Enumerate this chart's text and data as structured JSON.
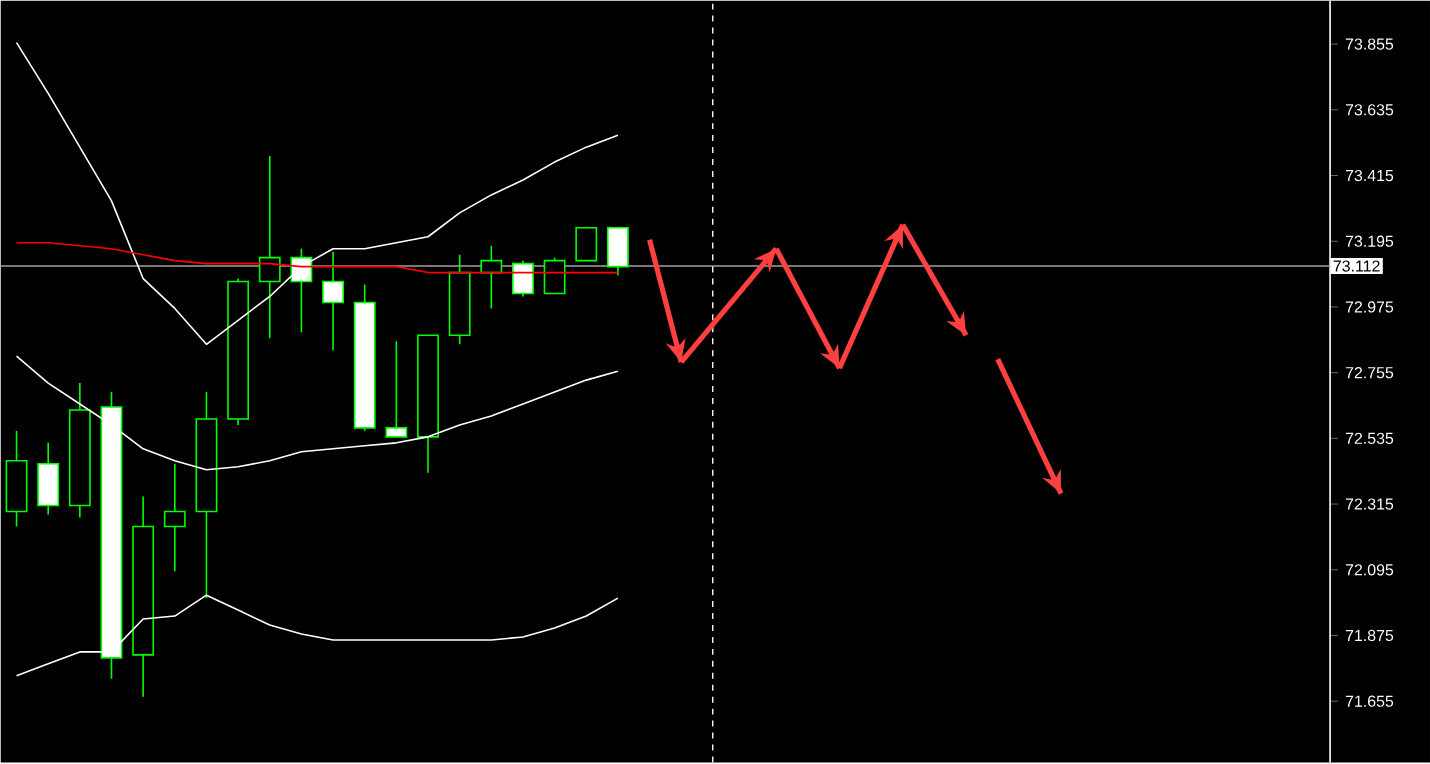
{
  "chart_data": {
    "type": "candlestick",
    "color": "#00ff00",
    "marker": "none",
    "categories": [
      null,
      null,
      null,
      null,
      null,
      null,
      null,
      null,
      null,
      null,
      null,
      null,
      null,
      null,
      null,
      null,
      null,
      null,
      null,
      null,
      null,
      null,
      null,
      null,
      null,
      null,
      null,
      null,
      null,
      null,
      null,
      null,
      null,
      null,
      null,
      null,
      null,
      null,
      null,
      null,
      null,
      null
    ],
    "ohlc": [
      [
        72.29,
        72.56,
        72.24,
        72.46
      ],
      [
        72.45,
        72.52,
        72.28,
        72.31
      ],
      [
        72.31,
        72.72,
        72.27,
        72.63
      ],
      [
        72.64,
        72.69,
        71.73,
        71.8
      ],
      [
        71.81,
        72.34,
        71.67,
        72.24
      ],
      [
        72.24,
        72.45,
        72.09,
        72.29
      ],
      [
        72.29,
        72.69,
        72.0,
        72.6
      ],
      [
        72.6,
        73.07,
        72.58,
        73.06
      ],
      [
        73.06,
        73.48,
        72.87,
        73.14
      ],
      [
        73.14,
        73.17,
        72.89,
        73.06
      ],
      [
        73.06,
        73.16,
        72.83,
        72.99
      ],
      [
        72.99,
        73.05,
        72.56,
        72.57
      ],
      [
        72.57,
        72.86,
        72.54,
        72.54
      ],
      [
        72.54,
        72.88,
        72.42,
        72.88
      ],
      [
        72.88,
        73.15,
        72.85,
        73.09
      ],
      [
        73.09,
        73.18,
        72.97,
        73.13
      ],
      [
        73.12,
        73.13,
        73.01,
        73.02
      ],
      [
        73.02,
        73.14,
        73.02,
        73.13
      ],
      [
        73.13,
        73.24,
        73.13,
        73.24
      ],
      [
        73.24,
        73.24,
        73.08,
        73.11
      ],
      null,
      null,
      null,
      null,
      null,
      null,
      null,
      null,
      null,
      null,
      null,
      null,
      null,
      null,
      null,
      null,
      null,
      null,
      null,
      null,
      null,
      null
    ],
    "ylim": [
      71.45,
      74.0
    ],
    "yticks": [
      71.655,
      71.875,
      72.095,
      72.315,
      72.535,
      72.755,
      72.975,
      73.195,
      73.415,
      73.635,
      73.855
    ],
    "series": [
      {
        "type": "line",
        "color": "#ffffff",
        "values": [
          73.86,
          73.69,
          73.51,
          73.33,
          73.07,
          72.97,
          72.85,
          72.93,
          73.01,
          73.11,
          73.17,
          73.17,
          73.19,
          73.21,
          73.29,
          73.35,
          73.4,
          73.46,
          73.51,
          73.55,
          null,
          null,
          null,
          null,
          null,
          null,
          null,
          null,
          null,
          null,
          null,
          null,
          null,
          null,
          null,
          null,
          null,
          null,
          null,
          null,
          null,
          null
        ]
      },
      {
        "type": "line",
        "color": "#ffffff",
        "values": [
          72.81,
          72.72,
          72.65,
          72.58,
          72.5,
          72.46,
          72.43,
          72.44,
          72.46,
          72.49,
          72.5,
          72.51,
          72.52,
          72.54,
          72.58,
          72.61,
          72.65,
          72.69,
          72.73,
          72.76,
          null,
          null,
          null,
          null,
          null,
          null,
          null,
          null,
          null,
          null,
          null,
          null,
          null,
          null,
          null,
          null,
          null,
          null,
          null,
          null,
          null,
          null
        ]
      },
      {
        "type": "line",
        "color": "#ffffff",
        "values": [
          71.74,
          71.78,
          71.82,
          71.82,
          71.93,
          71.94,
          72.01,
          71.96,
          71.91,
          71.88,
          71.86,
          71.86,
          71.86,
          71.86,
          71.86,
          71.86,
          71.87,
          71.9,
          71.94,
          72.0,
          null,
          null,
          null,
          null,
          null,
          null,
          null,
          null,
          null,
          null,
          null,
          null,
          null,
          null,
          null,
          null,
          null,
          null,
          null,
          null,
          null,
          null
        ]
      },
      {
        "type": "line",
        "color": "#ff0000",
        "values": [
          73.19,
          73.19,
          73.18,
          73.17,
          73.15,
          73.13,
          73.12,
          73.12,
          73.12,
          73.11,
          73.11,
          73.11,
          73.11,
          73.09,
          73.09,
          73.09,
          73.09,
          73.09,
          73.09,
          73.09,
          null,
          null,
          null,
          null,
          null,
          null,
          null,
          null,
          null,
          null,
          null,
          null,
          null,
          null,
          null,
          null,
          null,
          null,
          null,
          null,
          null,
          null
        ]
      },
      {
        "type": "line",
        "color": "#ff4040",
        "values": [
          null,
          null,
          null,
          null,
          null,
          null,
          null,
          null,
          null,
          null,
          null,
          null,
          null,
          null,
          null,
          null,
          null,
          null,
          null,
          null,
          73.2,
          72.79,
          null,
          null,
          null,
          null,
          null,
          null,
          null,
          null,
          null,
          null,
          null,
          null,
          null,
          null,
          null,
          null,
          null,
          null,
          null,
          null
        ]
      },
      {
        "type": "line",
        "color": "#ff4040",
        "values": [
          null,
          null,
          null,
          null,
          null,
          null,
          null,
          null,
          null,
          null,
          null,
          null,
          null,
          null,
          null,
          null,
          null,
          null,
          null,
          null,
          null,
          72.79,
          null,
          null,
          73.17,
          null,
          null,
          null,
          null,
          null,
          null,
          null,
          null,
          null,
          null,
          null,
          null,
          null,
          null,
          null,
          null,
          null
        ]
      },
      {
        "type": "line",
        "color": "#ff4040",
        "values": [
          null,
          null,
          null,
          null,
          null,
          null,
          null,
          null,
          null,
          null,
          null,
          null,
          null,
          null,
          null,
          null,
          null,
          null,
          null,
          null,
          null,
          null,
          null,
          null,
          73.17,
          null,
          72.77,
          null,
          null,
          null,
          null,
          null,
          null,
          null,
          null,
          null,
          null,
          null,
          null,
          null,
          null,
          null
        ]
      },
      {
        "type": "line",
        "color": "#ff4040",
        "values": [
          null,
          null,
          null,
          null,
          null,
          null,
          null,
          null,
          null,
          null,
          null,
          null,
          null,
          null,
          null,
          null,
          null,
          null,
          null,
          null,
          null,
          null,
          null,
          null,
          null,
          null,
          72.77,
          null,
          73.25,
          null,
          null,
          null,
          null,
          null,
          null,
          null,
          null,
          null,
          null,
          null,
          null,
          null
        ]
      },
      {
        "type": "line",
        "color": "#ff4040",
        "values": [
          null,
          null,
          null,
          null,
          null,
          null,
          null,
          null,
          null,
          null,
          null,
          null,
          null,
          null,
          null,
          null,
          null,
          null,
          null,
          null,
          null,
          null,
          null,
          null,
          null,
          null,
          null,
          null,
          73.25,
          null,
          72.88,
          null,
          null,
          null,
          null,
          null,
          null,
          null,
          null,
          null,
          null,
          null
        ]
      },
      {
        "type": "line",
        "color": "#ff4040",
        "values": [
          null,
          null,
          null,
          null,
          null,
          null,
          null,
          null,
          null,
          null,
          null,
          null,
          null,
          null,
          null,
          null,
          null,
          null,
          null,
          null,
          null,
          null,
          null,
          null,
          null,
          null,
          null,
          null,
          null,
          null,
          null,
          72.8,
          null,
          72.35,
          null,
          null,
          null,
          null,
          null,
          null,
          null,
          null
        ]
      }
    ],
    "ref_lines": [
      {
        "axis": "y",
        "value": 73.112,
        "label": "73.112",
        "color": "#a0a0a0"
      }
    ]
  }
}
